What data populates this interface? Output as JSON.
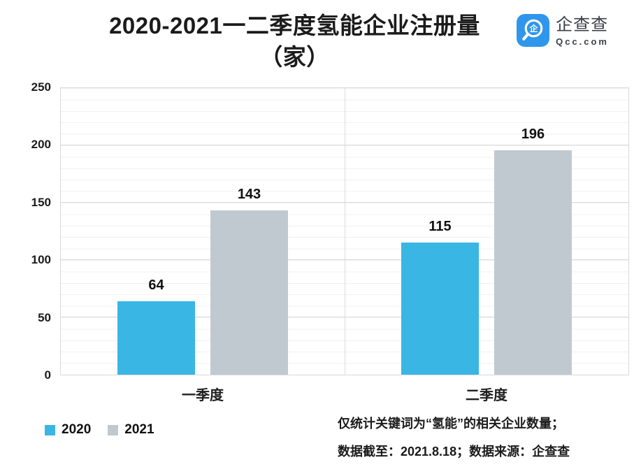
{
  "header": {
    "title_line1": "2020-2021一二季度氢能企业注册量",
    "title_line2": "（家）",
    "logo": {
      "brand_name": "企查查",
      "brand_domain": "Qcc.com",
      "brand_color": "#3096EB"
    }
  },
  "chart_data": {
    "type": "bar",
    "title": "2020-2021一二季度氢能企业注册量（家）",
    "categories": [
      "一季度",
      "二季度"
    ],
    "series": [
      {
        "name": "2020",
        "color": "#3AB6E4",
        "values": [
          64,
          115
        ]
      },
      {
        "name": "2021",
        "color": "#C1C9D0",
        "values": [
          143,
          196
        ]
      }
    ],
    "ylim": [
      0,
      250
    ],
    "y_ticks": [
      0,
      50,
      100,
      150,
      200,
      250
    ],
    "minor_grid_step": 10,
    "grid": "on",
    "legend_position": "bottom-left",
    "value_labels": "above-bars"
  },
  "footer": {
    "legend": [
      {
        "label": "2020",
        "color": "#3AB6E4"
      },
      {
        "label": "2021",
        "color": "#C1C9D0"
      }
    ],
    "notes": [
      "仅统计关键词为“氢能”的相关企业数量；",
      "数据截至：2021.8.18；数据来源：企查查"
    ]
  }
}
